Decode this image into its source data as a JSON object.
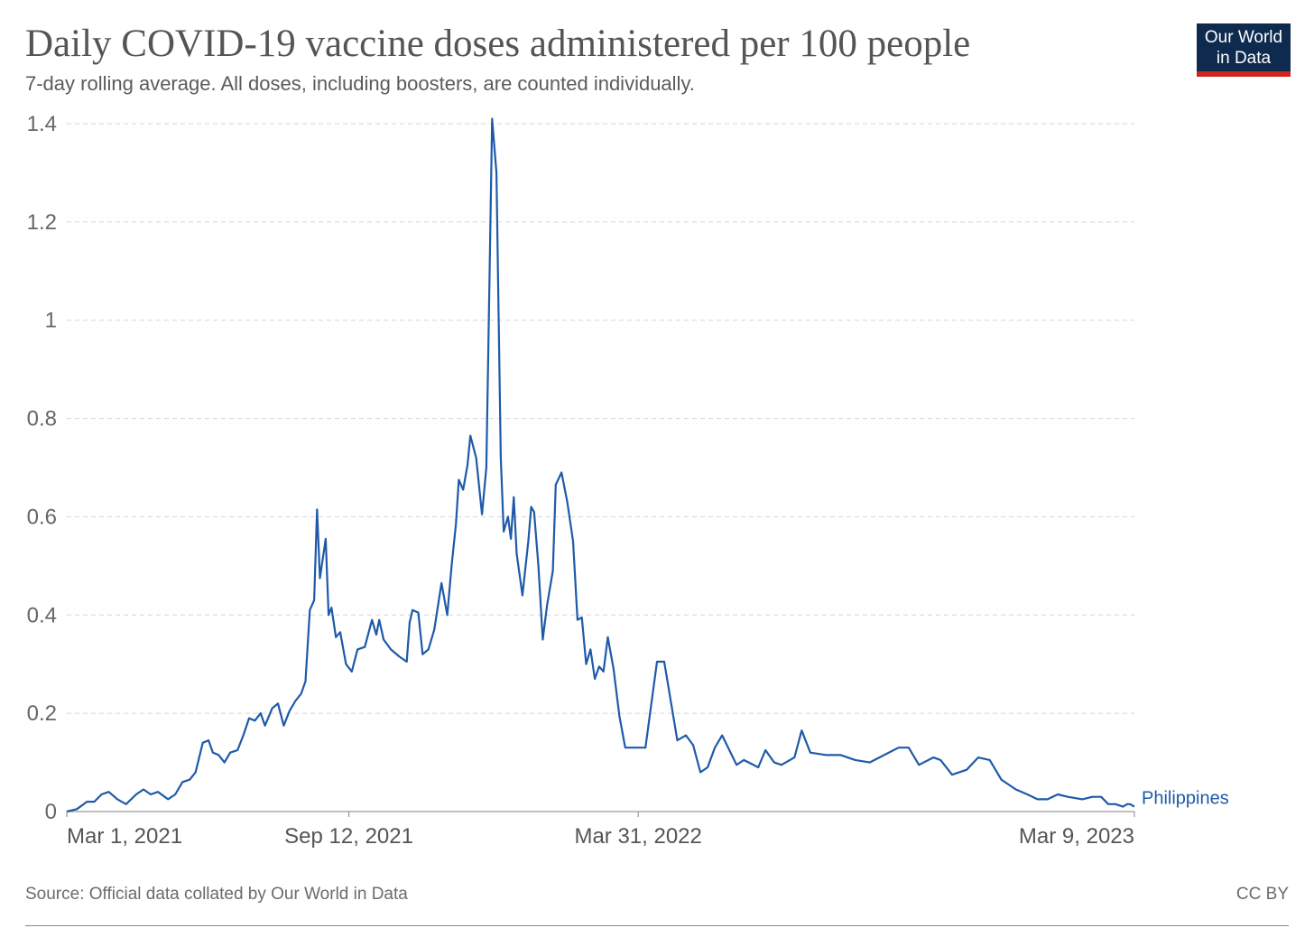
{
  "title": "Daily COVID-19 vaccine doses administered per 100 people",
  "subtitle": "7-day rolling average. All doses, including boosters, are counted individually.",
  "logo": {
    "line1": "Our World",
    "line2": "in Data"
  },
  "source": "Source: Official data collated by Our World in Data",
  "license": "CC BY",
  "colors": {
    "series": "#1e5aa8",
    "logo_bg": "#0e2a4e",
    "logo_accent": "#ce261e"
  },
  "chart_data": {
    "type": "line",
    "title": "Daily COVID-19 vaccine doses administered per 100 people",
    "subtitle": "7-day rolling average. All doses, including boosters, are counted individually.",
    "xlabel": "",
    "ylabel": "",
    "xlim": [
      "2021-03-01",
      "2023-03-09"
    ],
    "ylim": [
      0,
      1.4
    ],
    "yticks": [
      0,
      0.2,
      0.4,
      0.6,
      0.8,
      1,
      1.2,
      1.4
    ],
    "ytick_labels": [
      "0",
      "0.2",
      "0.4",
      "0.6",
      "0.8",
      "1",
      "1.2",
      "1.4"
    ],
    "xtick_labels": [
      "Mar 1, 2021",
      "Sep 12, 2021",
      "Mar 31, 2022",
      "Mar 9, 2023"
    ],
    "xtick_dates": [
      "2021-03-01",
      "2021-09-12",
      "2022-03-31",
      "2023-03-09"
    ],
    "grid": true,
    "series": [
      {
        "name": "Philippines",
        "color": "#1e5aa8",
        "points": [
          [
            "2021-03-01",
            0.0
          ],
          [
            "2021-03-08",
            0.005
          ],
          [
            "2021-03-15",
            0.02
          ],
          [
            "2021-03-20",
            0.02
          ],
          [
            "2021-03-25",
            0.035
          ],
          [
            "2021-03-30",
            0.04
          ],
          [
            "2021-04-05",
            0.025
          ],
          [
            "2021-04-11",
            0.015
          ],
          [
            "2021-04-18",
            0.035
          ],
          [
            "2021-04-23",
            0.045
          ],
          [
            "2021-04-28",
            0.035
          ],
          [
            "2021-05-03",
            0.04
          ],
          [
            "2021-05-10",
            0.025
          ],
          [
            "2021-05-15",
            0.035
          ],
          [
            "2021-05-20",
            0.06
          ],
          [
            "2021-05-25",
            0.065
          ],
          [
            "2021-05-29",
            0.08
          ],
          [
            "2021-06-03",
            0.14
          ],
          [
            "2021-06-07",
            0.145
          ],
          [
            "2021-06-10",
            0.12
          ],
          [
            "2021-06-14",
            0.115
          ],
          [
            "2021-06-18",
            0.1
          ],
          [
            "2021-06-22",
            0.12
          ],
          [
            "2021-06-27",
            0.125
          ],
          [
            "2021-07-01",
            0.155
          ],
          [
            "2021-07-05",
            0.19
          ],
          [
            "2021-07-09",
            0.185
          ],
          [
            "2021-07-13",
            0.2
          ],
          [
            "2021-07-16",
            0.175
          ],
          [
            "2021-07-21",
            0.21
          ],
          [
            "2021-07-25",
            0.22
          ],
          [
            "2021-07-29",
            0.175
          ],
          [
            "2021-08-02",
            0.205
          ],
          [
            "2021-08-06",
            0.225
          ],
          [
            "2021-08-10",
            0.24
          ],
          [
            "2021-08-13",
            0.265
          ],
          [
            "2021-08-16",
            0.41
          ],
          [
            "2021-08-19",
            0.43
          ],
          [
            "2021-08-21",
            0.615
          ],
          [
            "2021-08-23",
            0.475
          ],
          [
            "2021-08-27",
            0.555
          ],
          [
            "2021-08-29",
            0.4
          ],
          [
            "2021-08-31",
            0.415
          ],
          [
            "2021-09-03",
            0.355
          ],
          [
            "2021-09-06",
            0.365
          ],
          [
            "2021-09-10",
            0.3
          ],
          [
            "2021-09-14",
            0.285
          ],
          [
            "2021-09-18",
            0.33
          ],
          [
            "2021-09-23",
            0.335
          ],
          [
            "2021-09-28",
            0.39
          ],
          [
            "2021-10-01",
            0.36
          ],
          [
            "2021-10-03",
            0.39
          ],
          [
            "2021-10-06",
            0.35
          ],
          [
            "2021-10-11",
            0.33
          ],
          [
            "2021-10-17",
            0.315
          ],
          [
            "2021-10-22",
            0.305
          ],
          [
            "2021-10-24",
            0.385
          ],
          [
            "2021-10-26",
            0.41
          ],
          [
            "2021-10-30",
            0.405
          ],
          [
            "2021-11-02",
            0.32
          ],
          [
            "2021-11-06",
            0.33
          ],
          [
            "2021-11-10",
            0.37
          ],
          [
            "2021-11-15",
            0.465
          ],
          [
            "2021-11-19",
            0.4
          ],
          [
            "2021-11-22",
            0.5
          ],
          [
            "2021-11-25",
            0.585
          ],
          [
            "2021-11-27",
            0.675
          ],
          [
            "2021-11-30",
            0.655
          ],
          [
            "2021-12-03",
            0.705
          ],
          [
            "2021-12-05",
            0.765
          ],
          [
            "2021-12-09",
            0.72
          ],
          [
            "2021-12-13",
            0.605
          ],
          [
            "2021-12-16",
            0.7
          ],
          [
            "2021-12-18",
            1.05
          ],
          [
            "2021-12-20",
            1.41
          ],
          [
            "2021-12-23",
            1.3
          ],
          [
            "2021-12-26",
            0.72
          ],
          [
            "2021-12-28",
            0.57
          ],
          [
            "2021-12-31",
            0.6
          ],
          [
            "2022-01-02",
            0.555
          ],
          [
            "2022-01-04",
            0.64
          ],
          [
            "2022-01-06",
            0.525
          ],
          [
            "2022-01-10",
            0.44
          ],
          [
            "2022-01-14",
            0.55
          ],
          [
            "2022-01-16",
            0.62
          ],
          [
            "2022-01-18",
            0.61
          ],
          [
            "2022-01-21",
            0.5
          ],
          [
            "2022-01-24",
            0.35
          ],
          [
            "2022-01-27",
            0.42
          ],
          [
            "2022-01-31",
            0.49
          ],
          [
            "2022-02-02",
            0.665
          ],
          [
            "2022-02-06",
            0.69
          ],
          [
            "2022-02-10",
            0.63
          ],
          [
            "2022-02-14",
            0.55
          ],
          [
            "2022-02-17",
            0.39
          ],
          [
            "2022-02-20",
            0.395
          ],
          [
            "2022-02-23",
            0.3
          ],
          [
            "2022-02-26",
            0.33
          ],
          [
            "2022-03-01",
            0.27
          ],
          [
            "2022-03-04",
            0.295
          ],
          [
            "2022-03-07",
            0.285
          ],
          [
            "2022-03-10",
            0.355
          ],
          [
            "2022-03-14",
            0.29
          ],
          [
            "2022-03-18",
            0.195
          ],
          [
            "2022-03-22",
            0.13
          ],
          [
            "2022-03-31",
            0.13
          ],
          [
            "2022-04-05",
            0.13
          ],
          [
            "2022-04-13",
            0.305
          ],
          [
            "2022-04-18",
            0.305
          ],
          [
            "2022-04-27",
            0.145
          ],
          [
            "2022-05-03",
            0.155
          ],
          [
            "2022-05-08",
            0.135
          ],
          [
            "2022-05-13",
            0.08
          ],
          [
            "2022-05-18",
            0.09
          ],
          [
            "2022-05-23",
            0.13
          ],
          [
            "2022-05-28",
            0.155
          ],
          [
            "2022-06-02",
            0.125
          ],
          [
            "2022-06-07",
            0.095
          ],
          [
            "2022-06-12",
            0.105
          ],
          [
            "2022-06-22",
            0.09
          ],
          [
            "2022-06-27",
            0.125
          ],
          [
            "2022-07-03",
            0.1
          ],
          [
            "2022-07-08",
            0.095
          ],
          [
            "2022-07-17",
            0.11
          ],
          [
            "2022-07-22",
            0.165
          ],
          [
            "2022-07-28",
            0.12
          ],
          [
            "2022-08-08",
            0.115
          ],
          [
            "2022-08-18",
            0.115
          ],
          [
            "2022-08-28",
            0.105
          ],
          [
            "2022-09-07",
            0.1
          ],
          [
            "2022-09-17",
            0.115
          ],
          [
            "2022-09-27",
            0.13
          ],
          [
            "2022-10-04",
            0.13
          ],
          [
            "2022-10-11",
            0.095
          ],
          [
            "2022-10-21",
            0.11
          ],
          [
            "2022-10-26",
            0.105
          ],
          [
            "2022-11-03",
            0.075
          ],
          [
            "2022-11-13",
            0.085
          ],
          [
            "2022-11-21",
            0.11
          ],
          [
            "2022-11-29",
            0.105
          ],
          [
            "2022-12-07",
            0.065
          ],
          [
            "2022-12-17",
            0.045
          ],
          [
            "2022-12-25",
            0.035
          ],
          [
            "2023-01-01",
            0.025
          ],
          [
            "2023-01-08",
            0.025
          ],
          [
            "2023-01-15",
            0.035
          ],
          [
            "2023-01-22",
            0.03
          ],
          [
            "2023-02-01",
            0.025
          ],
          [
            "2023-02-08",
            0.03
          ],
          [
            "2023-02-14",
            0.03
          ],
          [
            "2023-02-19",
            0.015
          ],
          [
            "2023-02-24",
            0.015
          ],
          [
            "2023-03-01",
            0.01
          ],
          [
            "2023-03-04",
            0.015
          ],
          [
            "2023-03-06",
            0.015
          ],
          [
            "2023-03-09",
            0.01
          ]
        ]
      }
    ]
  }
}
